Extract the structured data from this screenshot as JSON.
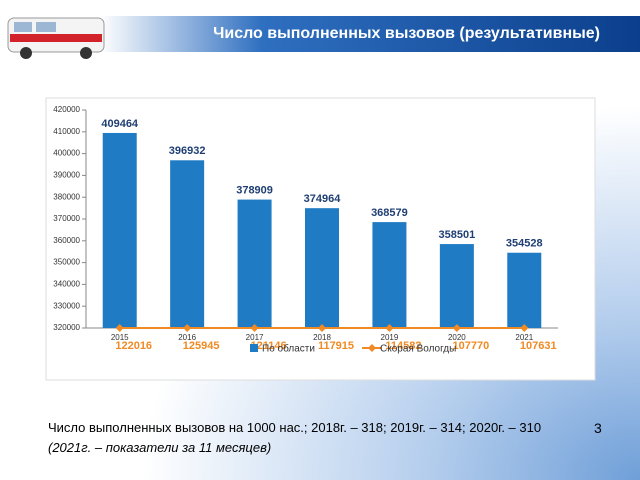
{
  "slide": {
    "title": "Число выполненных вызовов (результативные)",
    "footer": [
      "Число выполненных вызовов на 1000 нас.; 2018г. – 318; 2019г. – 314; 2020г. – 310",
      "(2021г. – показатели за 11 месяцев)"
    ],
    "page_number": "3"
  },
  "chart_data": {
    "type": "bar",
    "categories": [
      "2015",
      "2016",
      "2017",
      "2018",
      "2019",
      "2020",
      "2021"
    ],
    "series": [
      {
        "name": "По области",
        "type": "bar",
        "color": "#1f7bc4",
        "label_color": "#1f3f73",
        "values": [
          409464,
          396932,
          378909,
          374964,
          368579,
          358501,
          354528
        ]
      },
      {
        "name": "Скорая Вологды",
        "type": "line",
        "color": "#f08a24",
        "label_color": "#f08a24",
        "values": [
          122016,
          125945,
          121146,
          117915,
          114582,
          107770,
          107631
        ]
      }
    ],
    "ylim": [
      320000,
      420000
    ],
    "yticks": [
      320000,
      330000,
      340000,
      350000,
      360000,
      370000,
      380000,
      390000,
      400000,
      410000,
      420000
    ],
    "grid": false,
    "legend": "bottom"
  }
}
